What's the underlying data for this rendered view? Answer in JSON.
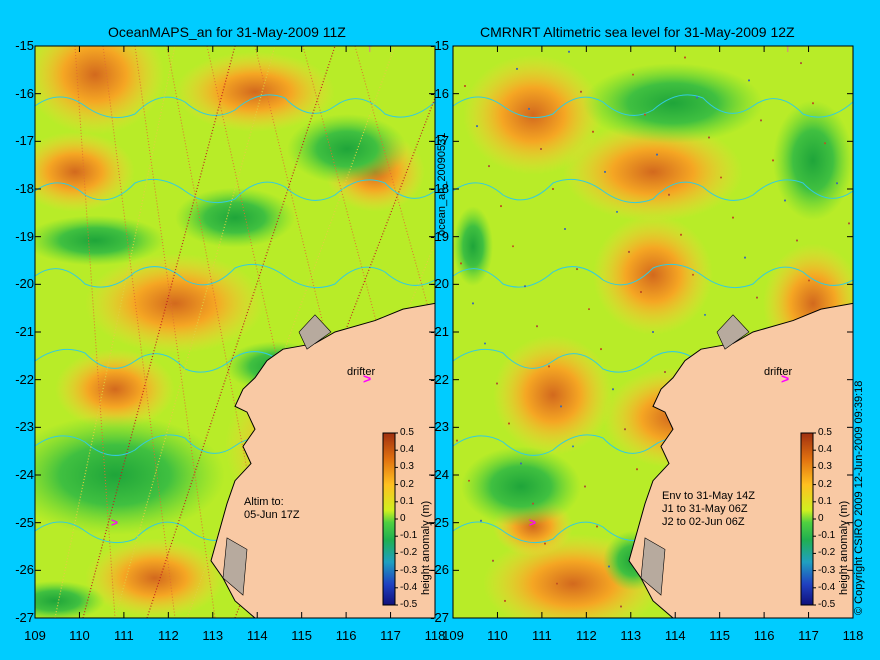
{
  "panels": [
    {
      "id": "left",
      "title": "OceanMAPS_an for 31-May-2009 11Z",
      "annotation": "Altim to:\n05-Jun 17Z",
      "drifter_label": "drifter",
      "colorbar_label": "height anomaly (m)"
    },
    {
      "id": "right",
      "title": "CMRNRT Altimetric sea level  for 31-May-2009 12Z",
      "annotation": "Env to 31-May 14Z\nJ1 to 31-May 06Z\nJ2 to 02-Jun 06Z",
      "drifter_label": "drifter",
      "colorbar_label": "height anomaly (m)"
    }
  ],
  "vertical_label": "ocean_an_20090531",
  "copyright": "© Copyright CSIRO 2009   12-Jun-2009 09:39:18",
  "lat_ticks": [
    "-15",
    "-16",
    "-17",
    "-18",
    "-19",
    "-20",
    "-21",
    "-22",
    "-23",
    "-24",
    "-25",
    "-26",
    "-27"
  ],
  "lon_ticks": [
    "109",
    "110",
    "111",
    "112",
    "113",
    "114",
    "115",
    "116",
    "117",
    "118"
  ],
  "colorbar_ticks": [
    "0.5",
    "0.4",
    "0.3",
    "0.2",
    "0.1",
    "0",
    "-0.1",
    "-0.2",
    "-0.3",
    "-0.4",
    "-0.5"
  ],
  "colors": {
    "background": "#00ccff",
    "land": "#f9c9a4",
    "land_shelf": "#b7aa9e",
    "drifter": "#ff00ff",
    "contour": "#33ccdd"
  }
}
